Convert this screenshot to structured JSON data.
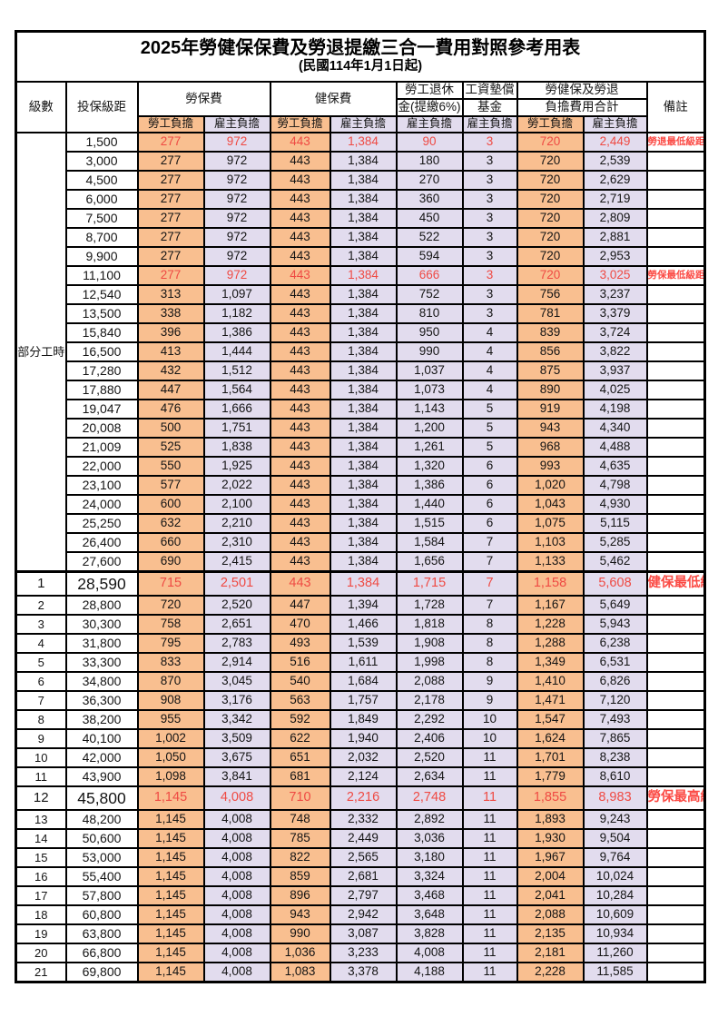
{
  "title": "2025年勞健保保費及勞退提繳三合一費用對照參考用表",
  "subtitle": "(民國114年1月1日起)",
  "header": {
    "level": "級數",
    "bracket": "投保級距",
    "labor": "勞保費",
    "health": "健保費",
    "pension_l1": "勞工退休",
    "pension_l2": "金(提繳6%)",
    "wage_l1": "工資墊償",
    "wage_l2": "基金",
    "total_l1": "勞健保及勞退",
    "total_l2": "負擔費用合計",
    "remark": "備註",
    "employee": "勞工負擔",
    "employer": "雇主負擔"
  },
  "part_time_label": "部分工時",
  "part_time_rowspan": 23,
  "colors": {
    "employee_bg": "#f9bf90",
    "employer_bg": "#e2dcee",
    "highlight_red": "#ef4a43",
    "border": "#000000"
  },
  "rows": [
    {
      "pt": true,
      "lv": "",
      "br": "1,500",
      "a": "277",
      "b": "972",
      "c": "443",
      "d": "1,384",
      "e": "90",
      "f": "3",
      "g": "720",
      "h": "2,449",
      "note": "勞退最低級距",
      "red": true
    },
    {
      "pt": true,
      "lv": "",
      "br": "3,000",
      "a": "277",
      "b": "972",
      "c": "443",
      "d": "1,384",
      "e": "180",
      "f": "3",
      "g": "720",
      "h": "2,539",
      "note": ""
    },
    {
      "pt": true,
      "lv": "",
      "br": "4,500",
      "a": "277",
      "b": "972",
      "c": "443",
      "d": "1,384",
      "e": "270",
      "f": "3",
      "g": "720",
      "h": "2,629",
      "note": ""
    },
    {
      "pt": true,
      "lv": "",
      "br": "6,000",
      "a": "277",
      "b": "972",
      "c": "443",
      "d": "1,384",
      "e": "360",
      "f": "3",
      "g": "720",
      "h": "2,719",
      "note": ""
    },
    {
      "pt": true,
      "lv": "",
      "br": "7,500",
      "a": "277",
      "b": "972",
      "c": "443",
      "d": "1,384",
      "e": "450",
      "f": "3",
      "g": "720",
      "h": "2,809",
      "note": ""
    },
    {
      "pt": true,
      "lv": "",
      "br": "8,700",
      "a": "277",
      "b": "972",
      "c": "443",
      "d": "1,384",
      "e": "522",
      "f": "3",
      "g": "720",
      "h": "2,881",
      "note": ""
    },
    {
      "pt": true,
      "lv": "",
      "br": "9,900",
      "a": "277",
      "b": "972",
      "c": "443",
      "d": "1,384",
      "e": "594",
      "f": "3",
      "g": "720",
      "h": "2,953",
      "note": ""
    },
    {
      "pt": true,
      "lv": "",
      "br": "11,100",
      "a": "277",
      "b": "972",
      "c": "443",
      "d": "1,384",
      "e": "666",
      "f": "3",
      "g": "720",
      "h": "3,025",
      "note": "勞保最低級距",
      "red": true
    },
    {
      "pt": true,
      "lv": "",
      "br": "12,540",
      "a": "313",
      "b": "1,097",
      "c": "443",
      "d": "1,384",
      "e": "752",
      "f": "3",
      "g": "756",
      "h": "3,237",
      "note": ""
    },
    {
      "pt": true,
      "lv": "",
      "br": "13,500",
      "a": "338",
      "b": "1,182",
      "c": "443",
      "d": "1,384",
      "e": "810",
      "f": "3",
      "g": "781",
      "h": "3,379",
      "note": ""
    },
    {
      "pt": true,
      "lv": "",
      "br": "15,840",
      "a": "396",
      "b": "1,386",
      "c": "443",
      "d": "1,384",
      "e": "950",
      "f": "4",
      "g": "839",
      "h": "3,724",
      "note": ""
    },
    {
      "pt": true,
      "lv": "",
      "br": "16,500",
      "a": "413",
      "b": "1,444",
      "c": "443",
      "d": "1,384",
      "e": "990",
      "f": "4",
      "g": "856",
      "h": "3,822",
      "note": ""
    },
    {
      "pt": true,
      "lv": "",
      "br": "17,280",
      "a": "432",
      "b": "1,512",
      "c": "443",
      "d": "1,384",
      "e": "1,037",
      "f": "4",
      "g": "875",
      "h": "3,937",
      "note": ""
    },
    {
      "pt": true,
      "lv": "",
      "br": "17,880",
      "a": "447",
      "b": "1,564",
      "c": "443",
      "d": "1,384",
      "e": "1,073",
      "f": "4",
      "g": "890",
      "h": "4,025",
      "note": ""
    },
    {
      "pt": true,
      "lv": "",
      "br": "19,047",
      "a": "476",
      "b": "1,666",
      "c": "443",
      "d": "1,384",
      "e": "1,143",
      "f": "5",
      "g": "919",
      "h": "4,198",
      "note": ""
    },
    {
      "pt": true,
      "lv": "",
      "br": "20,008",
      "a": "500",
      "b": "1,751",
      "c": "443",
      "d": "1,384",
      "e": "1,200",
      "f": "5",
      "g": "943",
      "h": "4,340",
      "note": ""
    },
    {
      "pt": true,
      "lv": "",
      "br": "21,009",
      "a": "525",
      "b": "1,838",
      "c": "443",
      "d": "1,384",
      "e": "1,261",
      "f": "5",
      "g": "968",
      "h": "4,488",
      "note": ""
    },
    {
      "pt": true,
      "lv": "",
      "br": "22,000",
      "a": "550",
      "b": "1,925",
      "c": "443",
      "d": "1,384",
      "e": "1,320",
      "f": "6",
      "g": "993",
      "h": "4,635",
      "note": ""
    },
    {
      "pt": true,
      "lv": "",
      "br": "23,100",
      "a": "577",
      "b": "2,022",
      "c": "443",
      "d": "1,384",
      "e": "1,386",
      "f": "6",
      "g": "1,020",
      "h": "4,798",
      "note": ""
    },
    {
      "pt": true,
      "lv": "",
      "br": "24,000",
      "a": "600",
      "b": "2,100",
      "c": "443",
      "d": "1,384",
      "e": "1,440",
      "f": "6",
      "g": "1,043",
      "h": "4,930",
      "note": ""
    },
    {
      "pt": true,
      "lv": "",
      "br": "25,250",
      "a": "632",
      "b": "2,210",
      "c": "443",
      "d": "1,384",
      "e": "1,515",
      "f": "6",
      "g": "1,075",
      "h": "5,115",
      "note": ""
    },
    {
      "pt": true,
      "lv": "",
      "br": "26,400",
      "a": "660",
      "b": "2,310",
      "c": "443",
      "d": "1,384",
      "e": "1,584",
      "f": "7",
      "g": "1,103",
      "h": "5,285",
      "note": ""
    },
    {
      "pt": true,
      "lv": "",
      "br": "27,600",
      "a": "690",
      "b": "2,415",
      "c": "443",
      "d": "1,384",
      "e": "1,656",
      "f": "7",
      "g": "1,133",
      "h": "5,462",
      "note": ""
    },
    {
      "lv": "1",
      "br": "28,590",
      "a": "715",
      "b": "2,501",
      "c": "443",
      "d": "1,384",
      "e": "1,715",
      "f": "7",
      "g": "1,158",
      "h": "5,608",
      "note": "健保最低級距",
      "red": true,
      "big": true,
      "thick": true
    },
    {
      "lv": "2",
      "br": "28,800",
      "a": "720",
      "b": "2,520",
      "c": "447",
      "d": "1,394",
      "e": "1,728",
      "f": "7",
      "g": "1,167",
      "h": "5,649",
      "note": ""
    },
    {
      "lv": "3",
      "br": "30,300",
      "a": "758",
      "b": "2,651",
      "c": "470",
      "d": "1,466",
      "e": "1,818",
      "f": "8",
      "g": "1,228",
      "h": "5,943",
      "note": ""
    },
    {
      "lv": "4",
      "br": "31,800",
      "a": "795",
      "b": "2,783",
      "c": "493",
      "d": "1,539",
      "e": "1,908",
      "f": "8",
      "g": "1,288",
      "h": "6,238",
      "note": ""
    },
    {
      "lv": "5",
      "br": "33,300",
      "a": "833",
      "b": "2,914",
      "c": "516",
      "d": "1,611",
      "e": "1,998",
      "f": "8",
      "g": "1,349",
      "h": "6,531",
      "note": ""
    },
    {
      "lv": "6",
      "br": "34,800",
      "a": "870",
      "b": "3,045",
      "c": "540",
      "d": "1,684",
      "e": "2,088",
      "f": "9",
      "g": "1,410",
      "h": "6,826",
      "note": ""
    },
    {
      "lv": "7",
      "br": "36,300",
      "a": "908",
      "b": "3,176",
      "c": "563",
      "d": "1,757",
      "e": "2,178",
      "f": "9",
      "g": "1,471",
      "h": "7,120",
      "note": ""
    },
    {
      "lv": "8",
      "br": "38,200",
      "a": "955",
      "b": "3,342",
      "c": "592",
      "d": "1,849",
      "e": "2,292",
      "f": "10",
      "g": "1,547",
      "h": "7,493",
      "note": ""
    },
    {
      "lv": "9",
      "br": "40,100",
      "a": "1,002",
      "b": "3,509",
      "c": "622",
      "d": "1,940",
      "e": "2,406",
      "f": "10",
      "g": "1,624",
      "h": "7,865",
      "note": ""
    },
    {
      "lv": "10",
      "br": "42,000",
      "a": "1,050",
      "b": "3,675",
      "c": "651",
      "d": "2,032",
      "e": "2,520",
      "f": "11",
      "g": "1,701",
      "h": "8,238",
      "note": ""
    },
    {
      "lv": "11",
      "br": "43,900",
      "a": "1,098",
      "b": "3,841",
      "c": "681",
      "d": "2,124",
      "e": "2,634",
      "f": "11",
      "g": "1,779",
      "h": "8,610",
      "note": ""
    },
    {
      "lv": "12",
      "br": "45,800",
      "a": "1,145",
      "b": "4,008",
      "c": "710",
      "d": "2,216",
      "e": "2,748",
      "f": "11",
      "g": "1,855",
      "h": "8,983",
      "note": "勞保最高級距",
      "red": true,
      "big": true
    },
    {
      "lv": "13",
      "br": "48,200",
      "a": "1,145",
      "b": "4,008",
      "c": "748",
      "d": "2,332",
      "e": "2,892",
      "f": "11",
      "g": "1,893",
      "h": "9,243",
      "note": ""
    },
    {
      "lv": "14",
      "br": "50,600",
      "a": "1,145",
      "b": "4,008",
      "c": "785",
      "d": "2,449",
      "e": "3,036",
      "f": "11",
      "g": "1,930",
      "h": "9,504",
      "note": ""
    },
    {
      "lv": "15",
      "br": "53,000",
      "a": "1,145",
      "b": "4,008",
      "c": "822",
      "d": "2,565",
      "e": "3,180",
      "f": "11",
      "g": "1,967",
      "h": "9,764",
      "note": ""
    },
    {
      "lv": "16",
      "br": "55,400",
      "a": "1,145",
      "b": "4,008",
      "c": "859",
      "d": "2,681",
      "e": "3,324",
      "f": "11",
      "g": "2,004",
      "h": "10,024",
      "note": ""
    },
    {
      "lv": "17",
      "br": "57,800",
      "a": "1,145",
      "b": "4,008",
      "c": "896",
      "d": "2,797",
      "e": "3,468",
      "f": "11",
      "g": "2,041",
      "h": "10,284",
      "note": ""
    },
    {
      "lv": "18",
      "br": "60,800",
      "a": "1,145",
      "b": "4,008",
      "c": "943",
      "d": "2,942",
      "e": "3,648",
      "f": "11",
      "g": "2,088",
      "h": "10,609",
      "note": ""
    },
    {
      "lv": "19",
      "br": "63,800",
      "a": "1,145",
      "b": "4,008",
      "c": "990",
      "d": "3,087",
      "e": "3,828",
      "f": "11",
      "g": "2,135",
      "h": "10,934",
      "note": ""
    },
    {
      "lv": "20",
      "br": "66,800",
      "a": "1,145",
      "b": "4,008",
      "c": "1,036",
      "d": "3,233",
      "e": "4,008",
      "f": "11",
      "g": "2,181",
      "h": "11,260",
      "note": ""
    },
    {
      "lv": "21",
      "br": "69,800",
      "a": "1,145",
      "b": "4,008",
      "c": "1,083",
      "d": "3,378",
      "e": "4,188",
      "f": "11",
      "g": "2,228",
      "h": "11,585",
      "note": ""
    }
  ]
}
